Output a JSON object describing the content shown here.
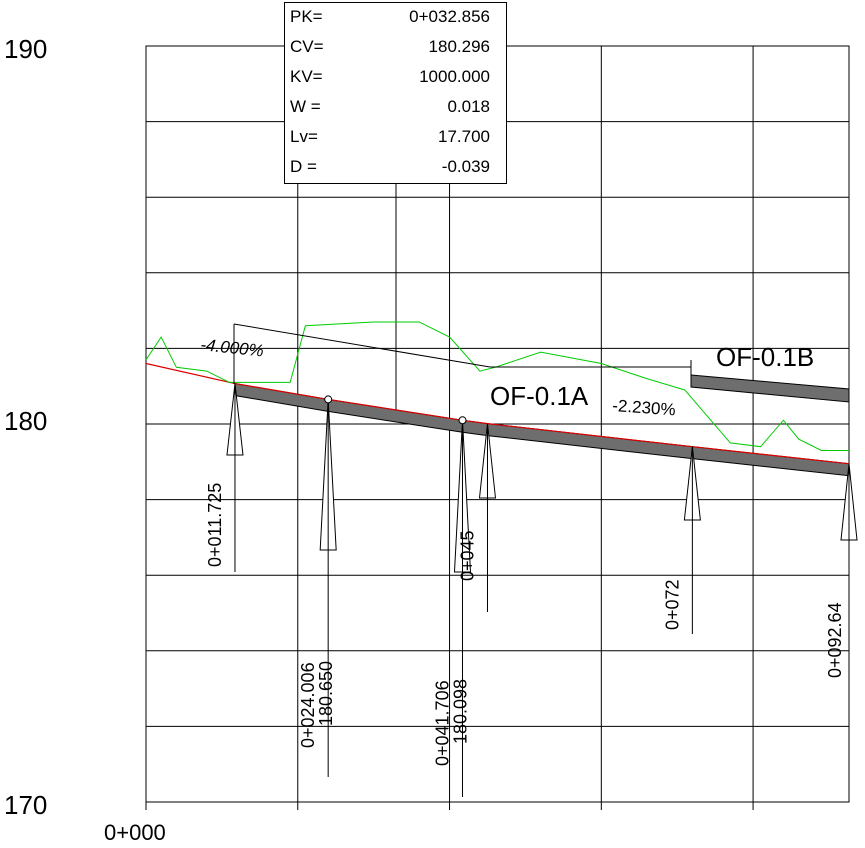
{
  "chart_data": {
    "type": "line",
    "title": "",
    "xlabel": "",
    "ylabel": "",
    "ylim": [
      170,
      190
    ],
    "y_ticks": [
      "190",
      "180",
      "170"
    ],
    "x_origin_label": "0+000",
    "colors": {
      "profile": "#dd0000",
      "terrain": "#00cc00",
      "pipe_fill": "#6e6e6e",
      "grid": "#000000"
    },
    "info_box": [
      {
        "label": "PK=",
        "value": "0+032.856"
      },
      {
        "label": "CV=",
        "value": "180.296"
      },
      {
        "label": "KV=",
        "value": "1000.000"
      },
      {
        "label": "W =",
        "value": "0.018"
      },
      {
        "label": "Lv=",
        "value": "17.700"
      },
      {
        "label": "D =",
        "value": "-0.039"
      }
    ],
    "slopes": [
      {
        "text": "-4.000%"
      },
      {
        "text": "-2.230%"
      }
    ],
    "sections": [
      {
        "text": "OF-0.1A"
      },
      {
        "text": "OF-0.1B"
      }
    ],
    "stations": [
      {
        "chainage": 11.725,
        "labels": [
          "0+011.725"
        ]
      },
      {
        "chainage": 24.006,
        "labels": [
          "0+024.006",
          "180.650"
        ]
      },
      {
        "chainage": 41.706,
        "labels": [
          "0+041.706",
          "180.098"
        ]
      },
      {
        "chainage": 45,
        "labels": [
          "0+045"
        ]
      },
      {
        "chainage": 72,
        "labels": [
          "0+072"
        ]
      },
      {
        "chainage": 92.64,
        "labels": [
          "0+092.64"
        ]
      }
    ],
    "profile_line": [
      {
        "x": 0,
        "y": 181.6
      },
      {
        "x": 11.725,
        "y": 181.07
      },
      {
        "x": 24.006,
        "y": 180.65
      },
      {
        "x": 41.706,
        "y": 180.098
      },
      {
        "x": 45,
        "y": 180.01
      },
      {
        "x": 72,
        "y": 179.4
      },
      {
        "x": 92.64,
        "y": 178.95
      }
    ],
    "terrain_line": [
      {
        "x": 0,
        "y": 181.7
      },
      {
        "x": 2,
        "y": 182.3
      },
      {
        "x": 4,
        "y": 181.5
      },
      {
        "x": 8,
        "y": 181.4
      },
      {
        "x": 11,
        "y": 181.1
      },
      {
        "x": 19,
        "y": 181.1
      },
      {
        "x": 21,
        "y": 182.6
      },
      {
        "x": 30,
        "y": 182.7
      },
      {
        "x": 36,
        "y": 182.7
      },
      {
        "x": 40,
        "y": 182.3
      },
      {
        "x": 44,
        "y": 181.4
      },
      {
        "x": 46,
        "y": 181.5
      },
      {
        "x": 52,
        "y": 181.9
      },
      {
        "x": 60,
        "y": 181.6
      },
      {
        "x": 66,
        "y": 181.2
      },
      {
        "x": 71,
        "y": 180.9
      },
      {
        "x": 74,
        "y": 180.2
      },
      {
        "x": 77,
        "y": 179.5
      },
      {
        "x": 81,
        "y": 179.4
      },
      {
        "x": 84,
        "y": 180.1
      },
      {
        "x": 86,
        "y": 179.6
      },
      {
        "x": 89,
        "y": 179.3
      },
      {
        "x": 92.64,
        "y": 179.3
      }
    ]
  }
}
